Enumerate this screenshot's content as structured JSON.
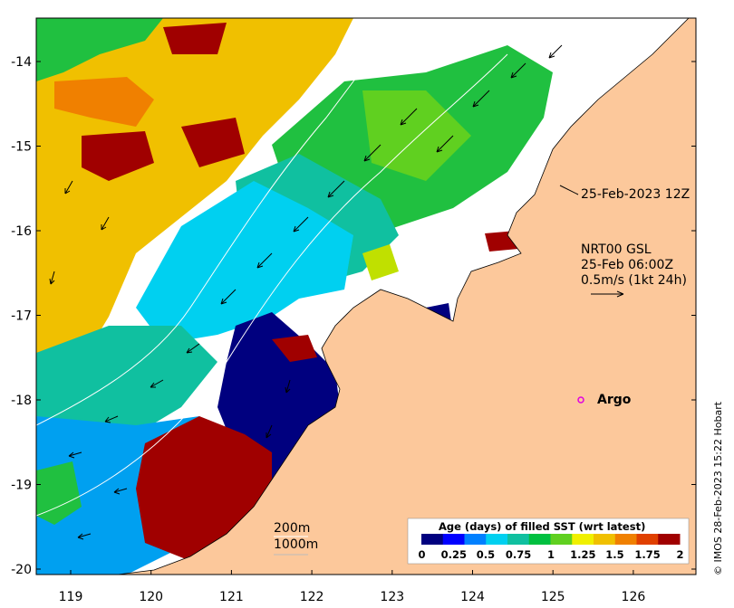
{
  "map": {
    "lon_ticks": [
      "119",
      "120",
      "121",
      "122",
      "123",
      "124",
      "125",
      "126"
    ],
    "lat_ticks": [
      "-14",
      "-15",
      "-16",
      "-17",
      "-18",
      "-19",
      "-20"
    ]
  },
  "annotations": {
    "altimetry_time": "25-Feb-2023 12Z",
    "current_product": "NRT00 GSL",
    "current_time": "25-Feb 06:00Z",
    "current_scale": "0.5m/s (1kt 24h)",
    "argo_label": "Argo",
    "contour_200": "200m",
    "contour_1000": "1000m"
  },
  "colorbar": {
    "title": "Age (days) of filled SST (wrt latest)",
    "labels": [
      "0",
      "0.25",
      "0.5",
      "0.75",
      "1",
      "1.25",
      "1.5",
      "1.75",
      "2"
    ],
    "colors": [
      "#00007f",
      "#0000ff",
      "#0080ff",
      "#00d0f0",
      "#10c0a0",
      "#00c040",
      "#60d020",
      "#f0f000",
      "#f0c000",
      "#f08000",
      "#e04000",
      "#a00000"
    ]
  },
  "credit": "© IMOS 28-Feb-2023 15:22 Hobart",
  "colors": {
    "land": "#fcc89b",
    "argo": "#e000e0"
  }
}
